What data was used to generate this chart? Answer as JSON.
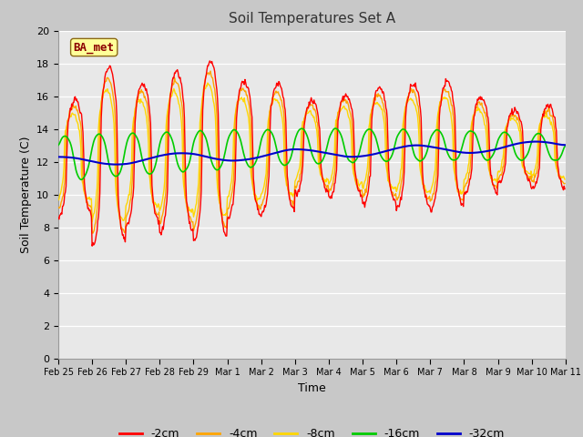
{
  "title": "Soil Temperatures Set A",
  "xlabel": "Time",
  "ylabel": "Soil Temperature (C)",
  "ylim": [
    0,
    20
  ],
  "yticks": [
    0,
    2,
    4,
    6,
    8,
    10,
    12,
    14,
    16,
    18,
    20
  ],
  "annotation": "BA_met",
  "annotation_color": "#8B0000",
  "annotation_bg": "#FFFF99",
  "fig_bg": "#C8C8C8",
  "plot_bg": "#E8E8E8",
  "series": {
    "-2cm": {
      "color": "#FF0000",
      "lw": 1.0
    },
    "-4cm": {
      "color": "#FFA500",
      "lw": 1.0
    },
    "-8cm": {
      "color": "#FFD700",
      "lw": 1.0
    },
    "-16cm": {
      "color": "#00CC00",
      "lw": 1.2
    },
    "-32cm": {
      "color": "#0000CC",
      "lw": 1.5
    }
  },
  "xtick_labels": [
    "Feb 25",
    "Feb 26",
    "Feb 27",
    "Feb 28",
    "Feb 29",
    "Mar 1",
    "Mar 2",
    "Mar 3",
    "Mar 4",
    "Mar 5",
    "Mar 6",
    "Mar 7",
    "Mar 8",
    "Mar 9",
    "Mar 10",
    "Mar 11"
  ],
  "n_days": 15,
  "pts_per_day": 48
}
